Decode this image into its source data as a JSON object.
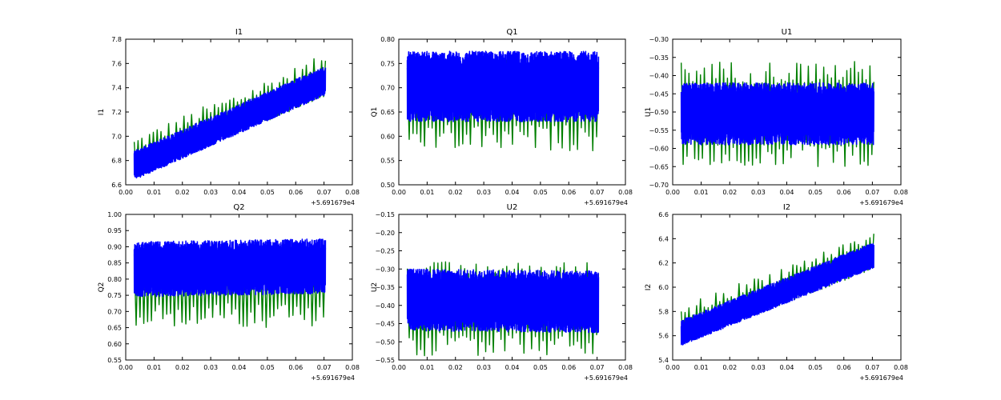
{
  "figure": {
    "background": "#ffffff",
    "blue": "#0000ff",
    "green": "#007f00"
  },
  "chart_data": [
    {
      "type": "line",
      "title": "I1",
      "xlabel": "",
      "ylabel": "I1",
      "xlim": [
        0.0,
        0.08
      ],
      "ylim": [
        6.6,
        7.8
      ],
      "xticks": [
        "0.00",
        "0.01",
        "0.02",
        "0.03",
        "0.04",
        "0.05",
        "0.06",
        "0.07",
        "0.08"
      ],
      "yticks": [
        "6.6",
        "6.8",
        "7.0",
        "7.2",
        "7.4",
        "7.6",
        "7.8"
      ],
      "offset_text": "+5.691679e4",
      "x_range": [
        0.003,
        0.0705
      ],
      "series": [
        {
          "color": "#007f00",
          "trend": [
            [
              0.003,
              6.7
            ],
            [
              0.0705,
              7.38
            ]
          ],
          "band": [
            -0.05,
            0.3
          ],
          "cycles": 50
        },
        {
          "color": "#0000ff",
          "trend": [
            [
              0.003,
              6.74
            ],
            [
              0.0705,
              7.44
            ]
          ],
          "band": [
            -0.1,
            0.14
          ],
          "cycles": 700
        }
      ]
    },
    {
      "type": "line",
      "title": "Q1",
      "xlabel": "",
      "ylabel": "Q1",
      "xlim": [
        0.0,
        0.08
      ],
      "ylim": [
        0.5,
        0.8
      ],
      "xticks": [
        "0.00",
        "0.01",
        "0.02",
        "0.03",
        "0.04",
        "0.05",
        "0.06",
        "0.07",
        "0.08"
      ],
      "yticks": [
        "0.50",
        "0.55",
        "0.60",
        "0.65",
        "0.70",
        "0.75",
        "0.80"
      ],
      "offset_text": "+5.691679e4",
      "x_range": [
        0.003,
        0.0705
      ],
      "series": [
        {
          "color": "#007f00",
          "trend": [
            [
              0.003,
              0.69
            ],
            [
              0.0705,
              0.69
            ]
          ],
          "band": [
            -0.12,
            0.075
          ],
          "cycles": 50
        },
        {
          "color": "#0000ff",
          "trend": [
            [
              0.003,
              0.7
            ],
            [
              0.0705,
              0.7
            ]
          ],
          "band": [
            -0.07,
            0.075
          ],
          "cycles": 700
        }
      ]
    },
    {
      "type": "line",
      "title": "U1",
      "xlabel": "",
      "ylabel": "U1",
      "xlim": [
        0.0,
        0.08
      ],
      "ylim": [
        -0.7,
        -0.3
      ],
      "xticks": [
        "0.00",
        "0.01",
        "0.02",
        "0.03",
        "0.04",
        "0.05",
        "0.06",
        "0.07",
        "0.08"
      ],
      "yticks": [
        "−0.70",
        "−0.65",
        "−0.60",
        "−0.55",
        "−0.50",
        "−0.45",
        "−0.40",
        "−0.35",
        "−0.30"
      ],
      "offset_text": "+5.691679e4",
      "x_range": [
        0.003,
        0.0705
      ],
      "series": [
        {
          "color": "#007f00",
          "trend": [
            [
              0.003,
              -0.5
            ],
            [
              0.0705,
              -0.5
            ]
          ],
          "band": [
            -0.15,
            0.14
          ],
          "cycles": 50
        },
        {
          "color": "#0000ff",
          "trend": [
            [
              0.003,
              -0.505
            ],
            [
              0.0705,
              -0.505
            ]
          ],
          "band": [
            -0.085,
            0.085
          ],
          "cycles": 700
        }
      ]
    },
    {
      "type": "line",
      "title": "Q2",
      "xlabel": "",
      "ylabel": "Q2",
      "xlim": [
        0.0,
        0.08
      ],
      "ylim": [
        0.55,
        1.0
      ],
      "xticks": [
        "0.00",
        "0.01",
        "0.02",
        "0.03",
        "0.04",
        "0.05",
        "0.06",
        "0.07",
        "0.08"
      ],
      "yticks": [
        "0.55",
        "0.60",
        "0.65",
        "0.70",
        "0.75",
        "0.80",
        "0.85",
        "0.90",
        "0.95",
        "1.00"
      ],
      "offset_text": "+5.691679e4",
      "x_range": [
        0.003,
        0.0705
      ],
      "series": [
        {
          "color": "#007f00",
          "trend": [
            [
              0.003,
              0.82
            ],
            [
              0.0705,
              0.82
            ]
          ],
          "band": [
            -0.17,
            0.08
          ],
          "cycles": 50
        },
        {
          "color": "#0000ff",
          "trend": [
            [
              0.003,
              0.83
            ],
            [
              0.0705,
              0.84
            ]
          ],
          "band": [
            -0.085,
            0.085
          ],
          "cycles": 700
        }
      ]
    },
    {
      "type": "line",
      "title": "U2",
      "xlabel": "",
      "ylabel": "U2",
      "xlim": [
        0.0,
        0.08
      ],
      "ylim": [
        -0.55,
        -0.15
      ],
      "xticks": [
        "0.00",
        "0.01",
        "0.02",
        "0.03",
        "0.04",
        "0.05",
        "0.06",
        "0.07",
        "0.08"
      ],
      "yticks": [
        "−0.55",
        "−0.50",
        "−0.45",
        "−0.40",
        "−0.35",
        "−0.30",
        "−0.25",
        "−0.20",
        "−0.15"
      ],
      "offset_text": "+5.691679e4",
      "x_range": [
        0.003,
        0.0705
      ],
      "series": [
        {
          "color": "#007f00",
          "trend": [
            [
              0.003,
              -0.39
            ],
            [
              0.0705,
              -0.39
            ]
          ],
          "band": [
            -0.15,
            0.11
          ],
          "cycles": 50
        },
        {
          "color": "#0000ff",
          "trend": [
            [
              0.003,
              -0.385
            ],
            [
              0.0705,
              -0.39
            ]
          ],
          "band": [
            -0.085,
            0.085
          ],
          "cycles": 700
        }
      ]
    },
    {
      "type": "line",
      "title": "I2",
      "xlabel": "",
      "ylabel": "I2",
      "xlim": [
        0.0,
        0.08
      ],
      "ylim": [
        5.4,
        6.6
      ],
      "xticks": [
        "0.00",
        "0.01",
        "0.02",
        "0.03",
        "0.04",
        "0.05",
        "0.06",
        "0.07",
        "0.08"
      ],
      "yticks": [
        "5.4",
        "5.6",
        "5.8",
        "6.0",
        "6.2",
        "6.4",
        "6.6"
      ],
      "offset_text": "+5.691679e4",
      "x_range": [
        0.003,
        0.0705
      ],
      "series": [
        {
          "color": "#007f00",
          "trend": [
            [
              0.003,
              5.58
            ],
            [
              0.0705,
              6.2
            ]
          ],
          "band": [
            -0.05,
            0.27
          ],
          "cycles": 50
        },
        {
          "color": "#0000ff",
          "trend": [
            [
              0.003,
              5.6
            ],
            [
              0.0705,
              6.24
            ]
          ],
          "band": [
            -0.08,
            0.13
          ],
          "cycles": 700
        }
      ]
    }
  ]
}
